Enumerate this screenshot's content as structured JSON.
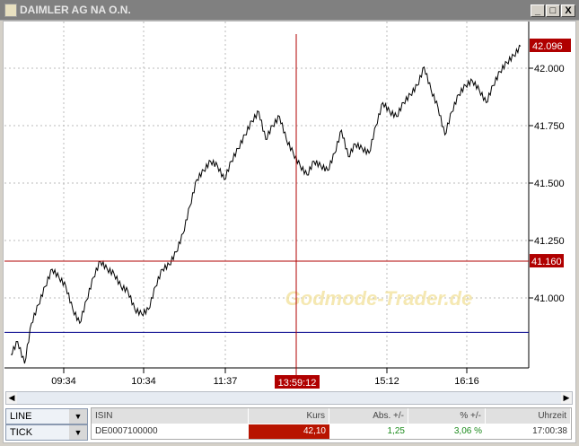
{
  "window": {
    "title": "DAIMLER AG NA O.N.",
    "buttons": [
      "_",
      "□",
      "X"
    ]
  },
  "chart_data": {
    "type": "line",
    "title": "",
    "x_ticks": [
      "09:34",
      "10:34",
      "11:37",
      "15:12",
      "16:16"
    ],
    "y_ticks": [
      "42.000",
      "41.750",
      "41.500",
      "41.250",
      "41.000"
    ],
    "ylim": [
      40.69,
      42.21
    ],
    "grid": true,
    "last_price_label": "42.096",
    "crosshair": {
      "time_label": "13:59:12",
      "price_label": "41.160",
      "price": 41.16
    },
    "horizontal_line": {
      "price": 40.85,
      "color": "#00008b"
    },
    "line_color": "#000000",
    "accent_color": "#b00000",
    "watermark": "Godmode-Trader.de",
    "values": [
      40.754,
      40.81,
      40.715,
      40.89,
      40.97,
      41.05,
      41.125,
      41.09,
      41.05,
      40.95,
      40.89,
      40.99,
      41.09,
      41.16,
      41.125,
      41.105,
      41.05,
      41.03,
      40.95,
      40.93,
      40.95,
      41.05,
      41.125,
      41.145,
      41.2,
      41.28,
      41.4,
      41.515,
      41.555,
      41.595,
      41.575,
      41.515,
      41.595,
      41.65,
      41.71,
      41.77,
      41.81,
      41.69,
      41.75,
      41.79,
      41.69,
      41.63,
      41.575,
      41.535,
      41.595,
      41.575,
      41.555,
      41.63,
      41.73,
      41.615,
      41.67,
      41.65,
      41.63,
      41.75,
      41.85,
      41.81,
      41.79,
      41.85,
      41.885,
      41.925,
      42.005,
      41.905,
      41.83,
      41.71,
      41.81,
      41.885,
      41.925,
      41.945,
      41.905,
      41.85,
      41.925,
      41.985,
      42.025,
      42.055,
      42.096
    ]
  },
  "controls": {
    "chart_type": "LINE",
    "interval": "TICK"
  },
  "quote_table": {
    "headers": [
      "ISIN",
      "Kurs",
      "Abs. +/-",
      "% +/-",
      "Uhrzeit"
    ],
    "row": [
      "DE0007100000",
      "42,10",
      "1,25",
      "3,06 %",
      "17:00:38"
    ]
  }
}
